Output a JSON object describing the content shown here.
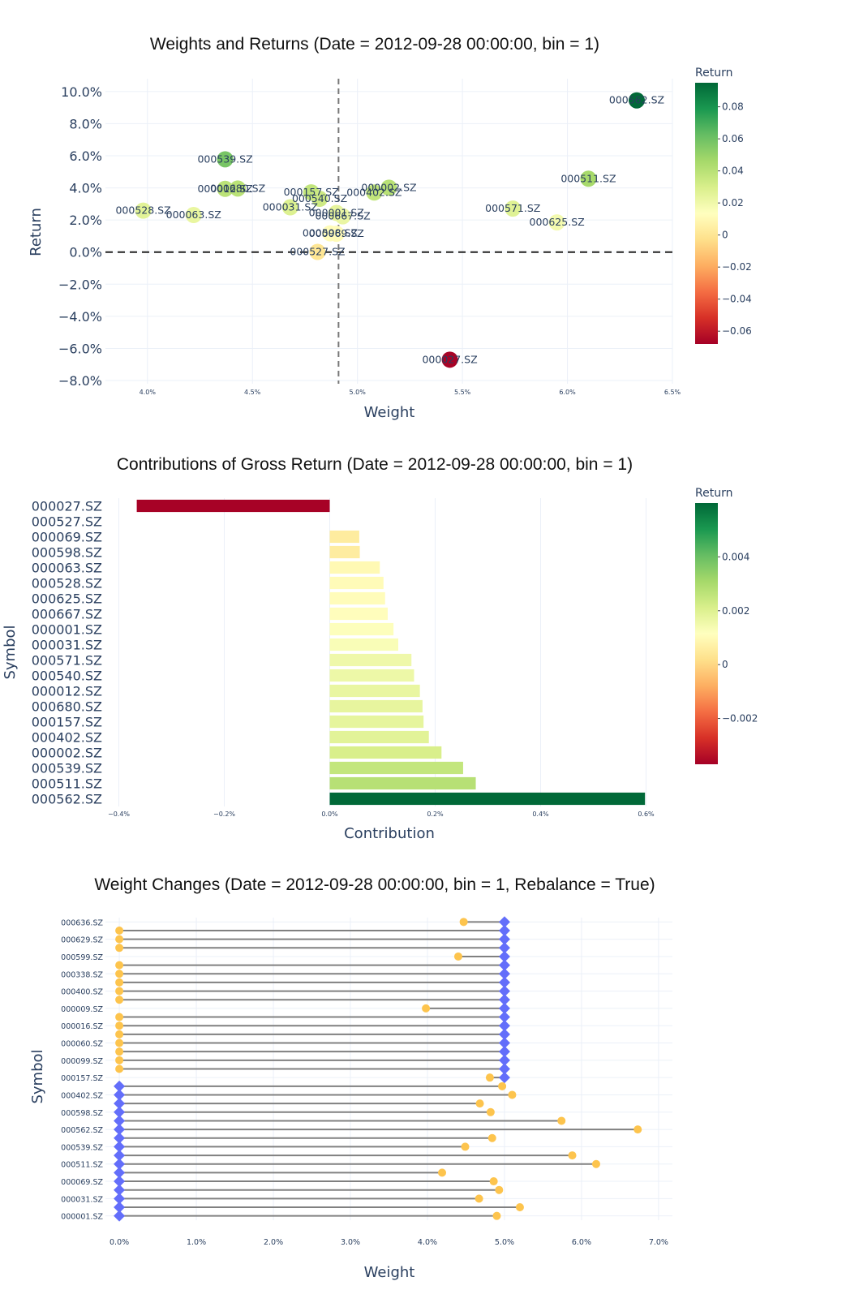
{
  "chart_data": [
    {
      "type": "scatter",
      "title": "Weights and Returns (Date = 2012-09-28 00:00:00, bin = 1)",
      "xlabel": "Weight",
      "ylabel": "Return",
      "xlim": [
        0.038,
        0.065
      ],
      "ylim": [
        -0.082,
        0.108
      ],
      "x_ticks": [
        0.04,
        0.045,
        0.05,
        0.055,
        0.06,
        0.065
      ],
      "x_tick_labels": [
        "4.0%",
        "4.5%",
        "5.0%",
        "5.5%",
        "6.0%",
        "6.5%"
      ],
      "y_ticks": [
        0.1,
        0.08,
        0.06,
        0.04,
        0.02,
        0.0,
        -0.02,
        -0.04,
        -0.06,
        -0.08
      ],
      "y_tick_labels": [
        "10.0%",
        "8.0%",
        "6.0%",
        "4.0%",
        "2.0%",
        "0.0%",
        "−2.0%",
        "−4.0%",
        "−6.0%",
        "−8.0%"
      ],
      "vline_x": 0.0491,
      "hline_y": 0.0,
      "colorbar": {
        "title": "Return",
        "range": [
          -0.068,
          0.095
        ],
        "ticks": [
          0.08,
          0.06,
          0.04,
          0.02,
          0,
          -0.02,
          -0.04,
          -0.06
        ],
        "tick_labels": [
          "0.08",
          "0.06",
          "0.04",
          "0.02",
          "0",
          "−0.02",
          "−0.04",
          "−0.06"
        ]
      },
      "points": [
        {
          "symbol": "000562.SZ",
          "x": 0.0633,
          "y": 0.0945
        },
        {
          "symbol": "000539.SZ",
          "x": 0.0437,
          "y": 0.0578
        },
        {
          "symbol": "000012.SZ",
          "x": 0.0437,
          "y": 0.0394
        },
        {
          "symbol": "000680.SZ",
          "x": 0.0443,
          "y": 0.0396
        },
        {
          "symbol": "000528.SZ",
          "x": 0.0398,
          "y": 0.0258
        },
        {
          "symbol": "000063.SZ",
          "x": 0.0422,
          "y": 0.0231
        },
        {
          "symbol": "000157.SZ",
          "x": 0.0478,
          "y": 0.0372
        },
        {
          "symbol": "000540.SZ",
          "x": 0.0482,
          "y": 0.0332
        },
        {
          "symbol": "000031.SZ",
          "x": 0.0468,
          "y": 0.0279
        },
        {
          "symbol": "000002.SZ",
          "x": 0.0515,
          "y": 0.0401
        },
        {
          "symbol": "000402.SZ",
          "x": 0.0508,
          "y": 0.0371
        },
        {
          "symbol": "000001.SZ",
          "x": 0.049,
          "y": 0.0244
        },
        {
          "symbol": "000667.SZ",
          "x": 0.0493,
          "y": 0.0223
        },
        {
          "symbol": "000598.SZ",
          "x": 0.0487,
          "y": 0.0117
        },
        {
          "symbol": "000069.SZ",
          "x": 0.049,
          "y": 0.0114
        },
        {
          "symbol": "000527.SZ",
          "x": 0.0481,
          "y": 0.0001
        },
        {
          "symbol": "000511.SZ",
          "x": 0.061,
          "y": 0.0457
        },
        {
          "symbol": "000571.SZ",
          "x": 0.0574,
          "y": 0.0271
        },
        {
          "symbol": "000625.SZ",
          "x": 0.0595,
          "y": 0.0185
        },
        {
          "symbol": "000027.SZ",
          "x": 0.0544,
          "y": -0.067
        }
      ]
    },
    {
      "type": "bar",
      "orientation": "horizontal",
      "title": "Contributions of Gross Return (Date = 2012-09-28 00:00:00, bin = 1)",
      "xlabel": "Contribution",
      "ylabel": "Symbol",
      "xlim": [
        -0.0041,
        0.0065
      ],
      "x_ticks": [
        -0.004,
        -0.002,
        0.0,
        0.002,
        0.004,
        0.006
      ],
      "x_tick_labels": [
        "−0.4%",
        "−0.2%",
        "0.0%",
        "0.2%",
        "0.4%",
        "0.6%"
      ],
      "colorbar": {
        "title": "Return",
        "range": [
          -0.0037,
          0.006
        ],
        "ticks": [
          0.004,
          0.002,
          0,
          -0.002
        ],
        "tick_labels": [
          "0.004",
          "0.002",
          "0",
          "−0.002"
        ]
      },
      "categories": [
        "000027.SZ",
        "000527.SZ",
        "000069.SZ",
        "000598.SZ",
        "000063.SZ",
        "000528.SZ",
        "000625.SZ",
        "000667.SZ",
        "000001.SZ",
        "000031.SZ",
        "000571.SZ",
        "000540.SZ",
        "000012.SZ",
        "000680.SZ",
        "000157.SZ",
        "000402.SZ",
        "000002.SZ",
        "000539.SZ",
        "000511.SZ",
        "000562.SZ"
      ],
      "values": [
        -0.00366,
        0.0,
        0.00056,
        0.00057,
        0.00095,
        0.00102,
        0.00105,
        0.0011,
        0.00121,
        0.0013,
        0.00155,
        0.0016,
        0.00171,
        0.00176,
        0.00178,
        0.00188,
        0.00212,
        0.00253,
        0.00277,
        0.00598
      ]
    },
    {
      "type": "dumbbell",
      "title": "Weight Changes (Date = 2012-09-28 00:00:00, bin = 1, Rebalance = True)",
      "xlabel": "Weight",
      "ylabel": "Symbol",
      "xlim": [
        -0.0018,
        0.0718
      ],
      "x_ticks": [
        0.0,
        0.01,
        0.02,
        0.03,
        0.04,
        0.05,
        0.06,
        0.07
      ],
      "x_tick_labels": [
        "0.0%",
        "1.0%",
        "2.0%",
        "3.0%",
        "4.0%",
        "5.0%",
        "6.0%",
        "7.0%"
      ],
      "visible_y_labels": [
        "000636.SZ",
        "000629.SZ",
        "000599.SZ",
        "000338.SZ",
        "000400.SZ",
        "000009.SZ",
        "000016.SZ",
        "000060.SZ",
        "000099.SZ",
        "000157.SZ",
        "000402.SZ",
        "000598.SZ",
        "000562.SZ",
        "000539.SZ",
        "000511.SZ",
        "000069.SZ",
        "000031.SZ",
        "000001.SZ"
      ],
      "colors": {
        "before": "#fdc44d",
        "after": "#636efa",
        "connector": "#808080"
      },
      "rows": [
        {
          "before": 0.0447,
          "after": 0.05
        },
        {
          "before": 0.0,
          "after": 0.05
        },
        {
          "before": 0.0,
          "after": 0.05
        },
        {
          "before": 0.0,
          "after": 0.05
        },
        {
          "before": 0.044,
          "after": 0.05
        },
        {
          "before": 0.0,
          "after": 0.05
        },
        {
          "before": 0.0,
          "after": 0.05
        },
        {
          "before": 0.0,
          "after": 0.05
        },
        {
          "before": 0.0,
          "after": 0.05
        },
        {
          "before": 0.0,
          "after": 0.05
        },
        {
          "before": 0.0398,
          "after": 0.05
        },
        {
          "before": 0.0,
          "after": 0.05
        },
        {
          "before": 0.0,
          "after": 0.05
        },
        {
          "before": 0.0,
          "after": 0.05
        },
        {
          "before": 0.0,
          "after": 0.05
        },
        {
          "before": 0.0,
          "after": 0.05
        },
        {
          "before": 0.0,
          "after": 0.05
        },
        {
          "before": 0.0,
          "after": 0.05
        },
        {
          "before": 0.0481,
          "after": 0.05
        },
        {
          "before": 0.0497,
          "after": 0.0
        },
        {
          "before": 0.051,
          "after": 0.0
        },
        {
          "before": 0.0468,
          "after": 0.0
        },
        {
          "before": 0.0482,
          "after": 0.0
        },
        {
          "before": 0.0574,
          "after": 0.0
        },
        {
          "before": 0.0673,
          "after": 0.0
        },
        {
          "before": 0.0484,
          "after": 0.0
        },
        {
          "before": 0.0449,
          "after": 0.0
        },
        {
          "before": 0.0588,
          "after": 0.0
        },
        {
          "before": 0.0619,
          "after": 0.0
        },
        {
          "before": 0.0419,
          "after": 0.0
        },
        {
          "before": 0.0486,
          "after": 0.0
        },
        {
          "before": 0.0493,
          "after": 0.0
        },
        {
          "before": 0.0467,
          "after": 0.0
        },
        {
          "before": 0.052,
          "after": 0.0
        },
        {
          "before": 0.049,
          "after": 0.0
        }
      ]
    }
  ]
}
